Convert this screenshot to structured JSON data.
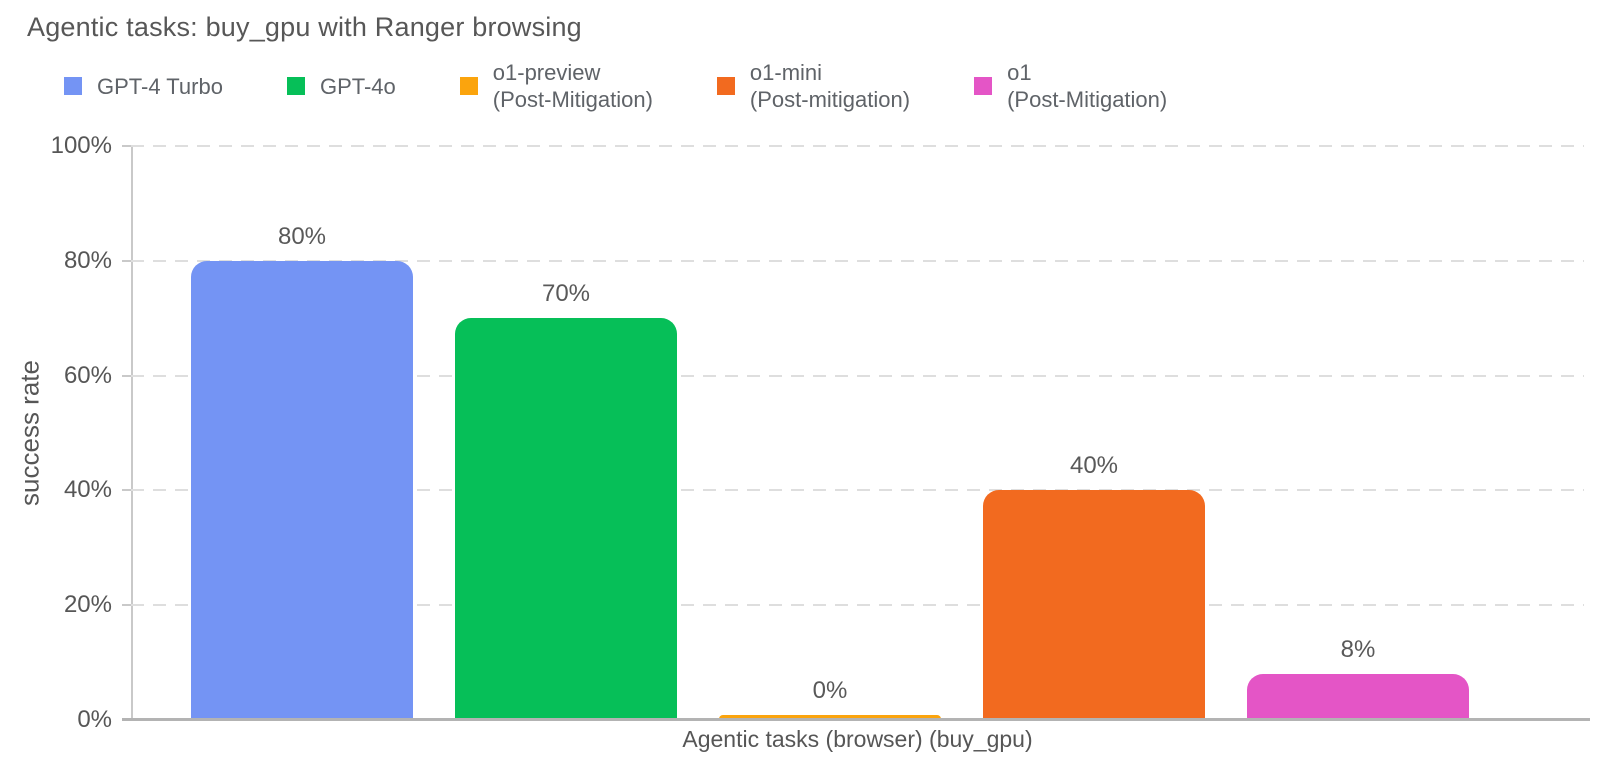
{
  "chart_data": {
    "type": "bar",
    "title": "Agentic tasks: buy_gpu with Ranger browsing",
    "xlabel": "Agentic tasks (browser) (buy_gpu)",
    "ylabel": "success rate",
    "ylim": [
      0,
      100
    ],
    "yticks": [
      0,
      20,
      40,
      60,
      80,
      100
    ],
    "ytick_labels": [
      "0%",
      "20%",
      "40%",
      "60%",
      "80%",
      "100%"
    ],
    "grid": "horizontal-dashed",
    "legend_position": "top",
    "categories": [
      "Agentic tasks (browser) (buy_gpu)"
    ],
    "series": [
      {
        "name": "GPT-4 Turbo",
        "legend_lines": [
          "GPT-4 Turbo"
        ],
        "value": 80,
        "value_label": "80%",
        "color": "#7494F4"
      },
      {
        "name": "GPT-4o",
        "legend_lines": [
          "GPT-4o"
        ],
        "value": 70,
        "value_label": "70%",
        "color": "#06BF58"
      },
      {
        "name": "o1-preview (Post-Mitigation)",
        "legend_lines": [
          "o1-preview",
          "(Post-Mitigation)"
        ],
        "value": 0,
        "value_label": "0%",
        "color": "#FBA40D"
      },
      {
        "name": "o1-mini (Post-mitigation)",
        "legend_lines": [
          "o1-mini",
          "(Post-mitigation)"
        ],
        "value": 40,
        "value_label": "40%",
        "color": "#F26A1F"
      },
      {
        "name": "o1 (Post-Mitigation)",
        "legend_lines": [
          "o1",
          "(Post-Mitigation)"
        ],
        "value": 8,
        "value_label": "8%",
        "color": "#E455C6"
      }
    ]
  },
  "colors": {
    "background": "#ffffff",
    "title_text": "#575757",
    "axis_text": "#565656",
    "legend_text": "#5f6368",
    "value_label_text": "#595959",
    "gridline": "#dedede",
    "axis_line": "#c9c9c9",
    "baseline": "#b3b3b3"
  }
}
